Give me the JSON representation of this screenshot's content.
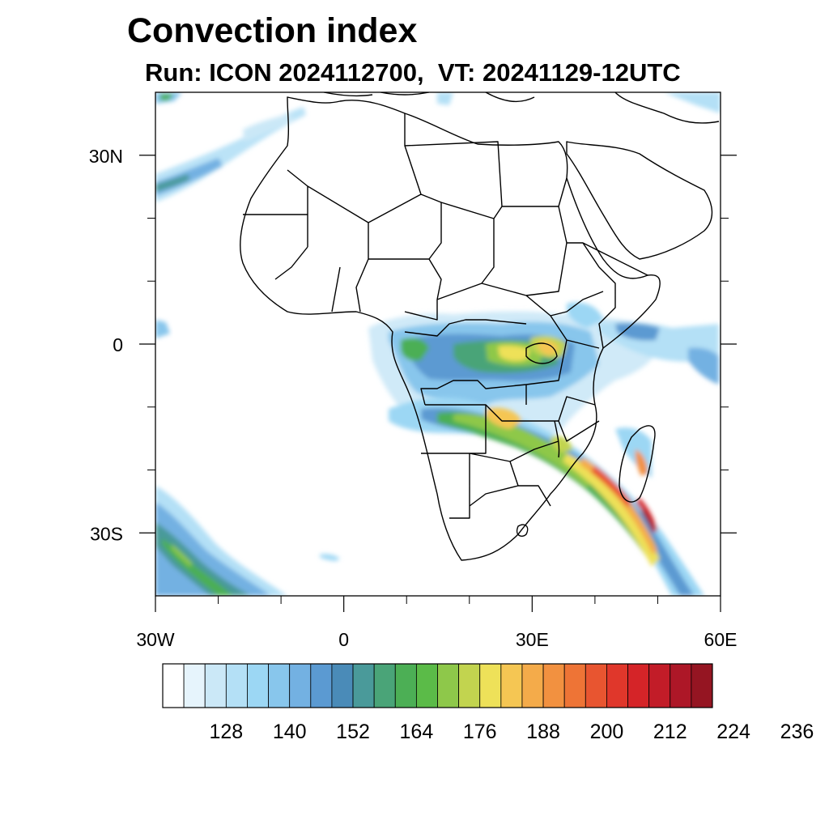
{
  "header": {
    "title": "Convection index",
    "subtitle": "Run: ICON 2024112700,  VT: 20241129-12UTC"
  },
  "map": {
    "projection": "cylindrical equidistant",
    "lon_range": [
      -30,
      60
    ],
    "lat_range": [
      -40,
      40
    ],
    "lon_ticks": [
      {
        "value": -30,
        "label": "30W"
      },
      {
        "value": 0,
        "label": "0"
      },
      {
        "value": 30,
        "label": "30E"
      },
      {
        "value": 60,
        "label": "60E"
      }
    ],
    "lat_ticks": [
      {
        "value": 30,
        "label": "30N"
      },
      {
        "value": 0,
        "label": "0"
      },
      {
        "value": -30,
        "label": "30S"
      }
    ],
    "minor_lon_ticks": [
      -20,
      -10,
      10,
      20,
      40,
      50
    ],
    "minor_lat_ticks": [
      20,
      10,
      -10,
      -20
    ],
    "field": "convection index",
    "regions": [
      "Congo basin / equatorial Africa: convection index 164-200, locally up to 200",
      "East African lakes region: 164-200",
      "Diagonal band from Zambia through Mozambique Channel to SE of Madagascar: 176-230",
      "South Atlantic SW corner: 140-176",
      "North Atlantic NW corner: 128-164",
      "Western Indian Ocean near equator: 128-152"
    ]
  },
  "colorbar": {
    "labels": [
      "128",
      "140",
      "152",
      "164",
      "176",
      "188",
      "200",
      "212",
      "224",
      "236"
    ],
    "colors": [
      "#ffffff",
      "#e6f4fc",
      "#cbe8f7",
      "#b4e0f6",
      "#9cd7f4",
      "#88c6ec",
      "#73b1e2",
      "#5b9ad2",
      "#4a8bb8",
      "#4a9a9a",
      "#4aa478",
      "#4caf55",
      "#5bbb48",
      "#8ec84a",
      "#c2d44f",
      "#eee159",
      "#f5c653",
      "#f4ab4a",
      "#f29140",
      "#ee7436",
      "#e85530",
      "#e0372b",
      "#d52428",
      "#c21c28",
      "#ad1727",
      "#951522"
    ]
  }
}
